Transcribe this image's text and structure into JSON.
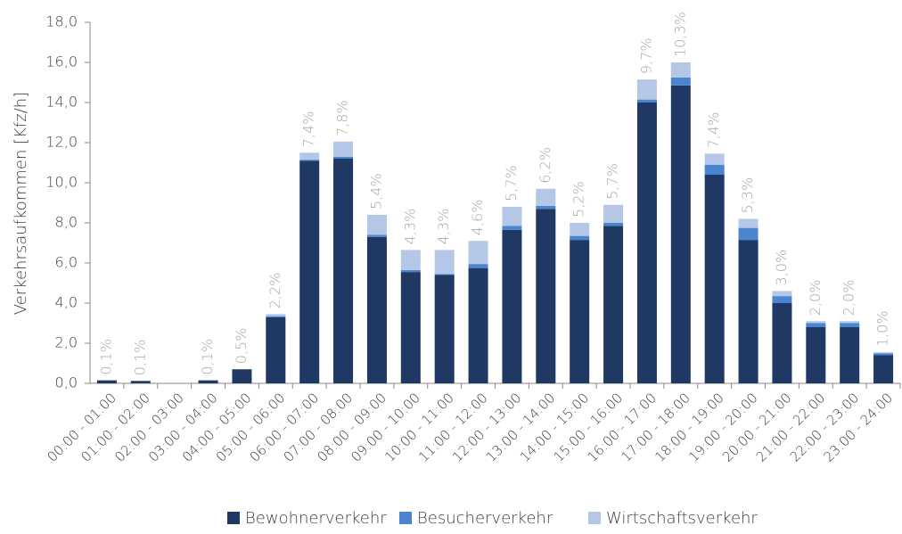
{
  "chart_data": {
    "type": "stacked_bar",
    "ylabel": "Verkehrsaufkommen [Kfz/h]",
    "categories": [
      "00:00 - 01:00",
      "01:00 - 02:00",
      "02:00 - 03:00",
      "03:00 - 04:00",
      "04:00 - 05:00",
      "05:00 - 06:00",
      "06:00 - 07:00",
      "07:00 - 08:00",
      "08:00 - 09:00",
      "09:00 - 10:00",
      "10:00 - 11:00",
      "11:00 - 12:00",
      "12:00 - 13:00",
      "13:00 - 14:00",
      "14:00 - 15:00",
      "15:00 - 16:00",
      "16:00 - 17:00",
      "17:00 - 18:00",
      "18:00 - 19:00",
      "19:00 - 20:00",
      "20:00 - 21:00",
      "21:00 - 22:00",
      "22:00 - 23:00",
      "23:00 - 24:00"
    ],
    "series": [
      {
        "name": "Bewohnerverkehr",
        "color": "#1f3864",
        "values": [
          0.15,
          0.12,
          0,
          0.15,
          0.7,
          3.3,
          11.1,
          11.2,
          7.3,
          5.55,
          5.4,
          5.75,
          7.65,
          8.7,
          7.15,
          7.85,
          14.0,
          14.85,
          10.4,
          7.15,
          4.0,
          2.8,
          2.8,
          1.4
        ]
      },
      {
        "name": "Besucherverkehr",
        "color": "#4a86d0",
        "values": [
          0,
          0,
          0,
          0,
          0,
          0.05,
          0.05,
          0.1,
          0.1,
          0.1,
          0.05,
          0.2,
          0.2,
          0.15,
          0.2,
          0.15,
          0.15,
          0.4,
          0.5,
          0.6,
          0.35,
          0.2,
          0.2,
          0.1
        ]
      },
      {
        "name": "Wirtschaftsverkehr",
        "color": "#b4c7e7",
        "values": [
          0,
          0,
          0,
          0,
          0,
          0.1,
          0.35,
          0.75,
          1.0,
          1.0,
          1.2,
          1.15,
          0.95,
          0.85,
          0.65,
          0.9,
          1.0,
          0.75,
          0.55,
          0.45,
          0.25,
          0.1,
          0.1,
          0.05
        ]
      }
    ],
    "shares": [
      0.1,
      0.1,
      null,
      0.1,
      0.5,
      2.2,
      7.4,
      7.8,
      5.4,
      4.3,
      4.3,
      4.6,
      5.7,
      6.2,
      5.2,
      5.7,
      9.7,
      10.3,
      7.4,
      5.3,
      3.0,
      2.0,
      2.0,
      1.0
    ],
    "share_labels": [
      "0,1%",
      "0,1%",
      null,
      "0,1%",
      "0,5%",
      "2,2%",
      "7,4%",
      "7,8%",
      "5,4%",
      "4,3%",
      "4,3%",
      "4,6%",
      "5,7%",
      "6,2%",
      "5,2%",
      "5,7%",
      "9,7%",
      "10,3%",
      "7,4%",
      "5,3%",
      "3,0%",
      "2,0%",
      "2,0%",
      "1,0%"
    ],
    "share_color": "#a6a6a6",
    "ylim": [
      0,
      18
    ],
    "yticks": [
      {
        "value": 0,
        "label": "0,0"
      },
      {
        "value": 2,
        "label": "2,0"
      },
      {
        "value": 4,
        "label": "4,0"
      },
      {
        "value": 6,
        "label": "6,0"
      },
      {
        "value": 8,
        "label": "8,0"
      },
      {
        "value": 10,
        "label": "10,0"
      },
      {
        "value": 12,
        "label": "12,0"
      },
      {
        "value": 14,
        "label": "14,0"
      },
      {
        "value": 16,
        "label": "16,0"
      },
      {
        "value": 18,
        "label": "18,0"
      }
    ],
    "grid": false,
    "legend": "bottom"
  }
}
